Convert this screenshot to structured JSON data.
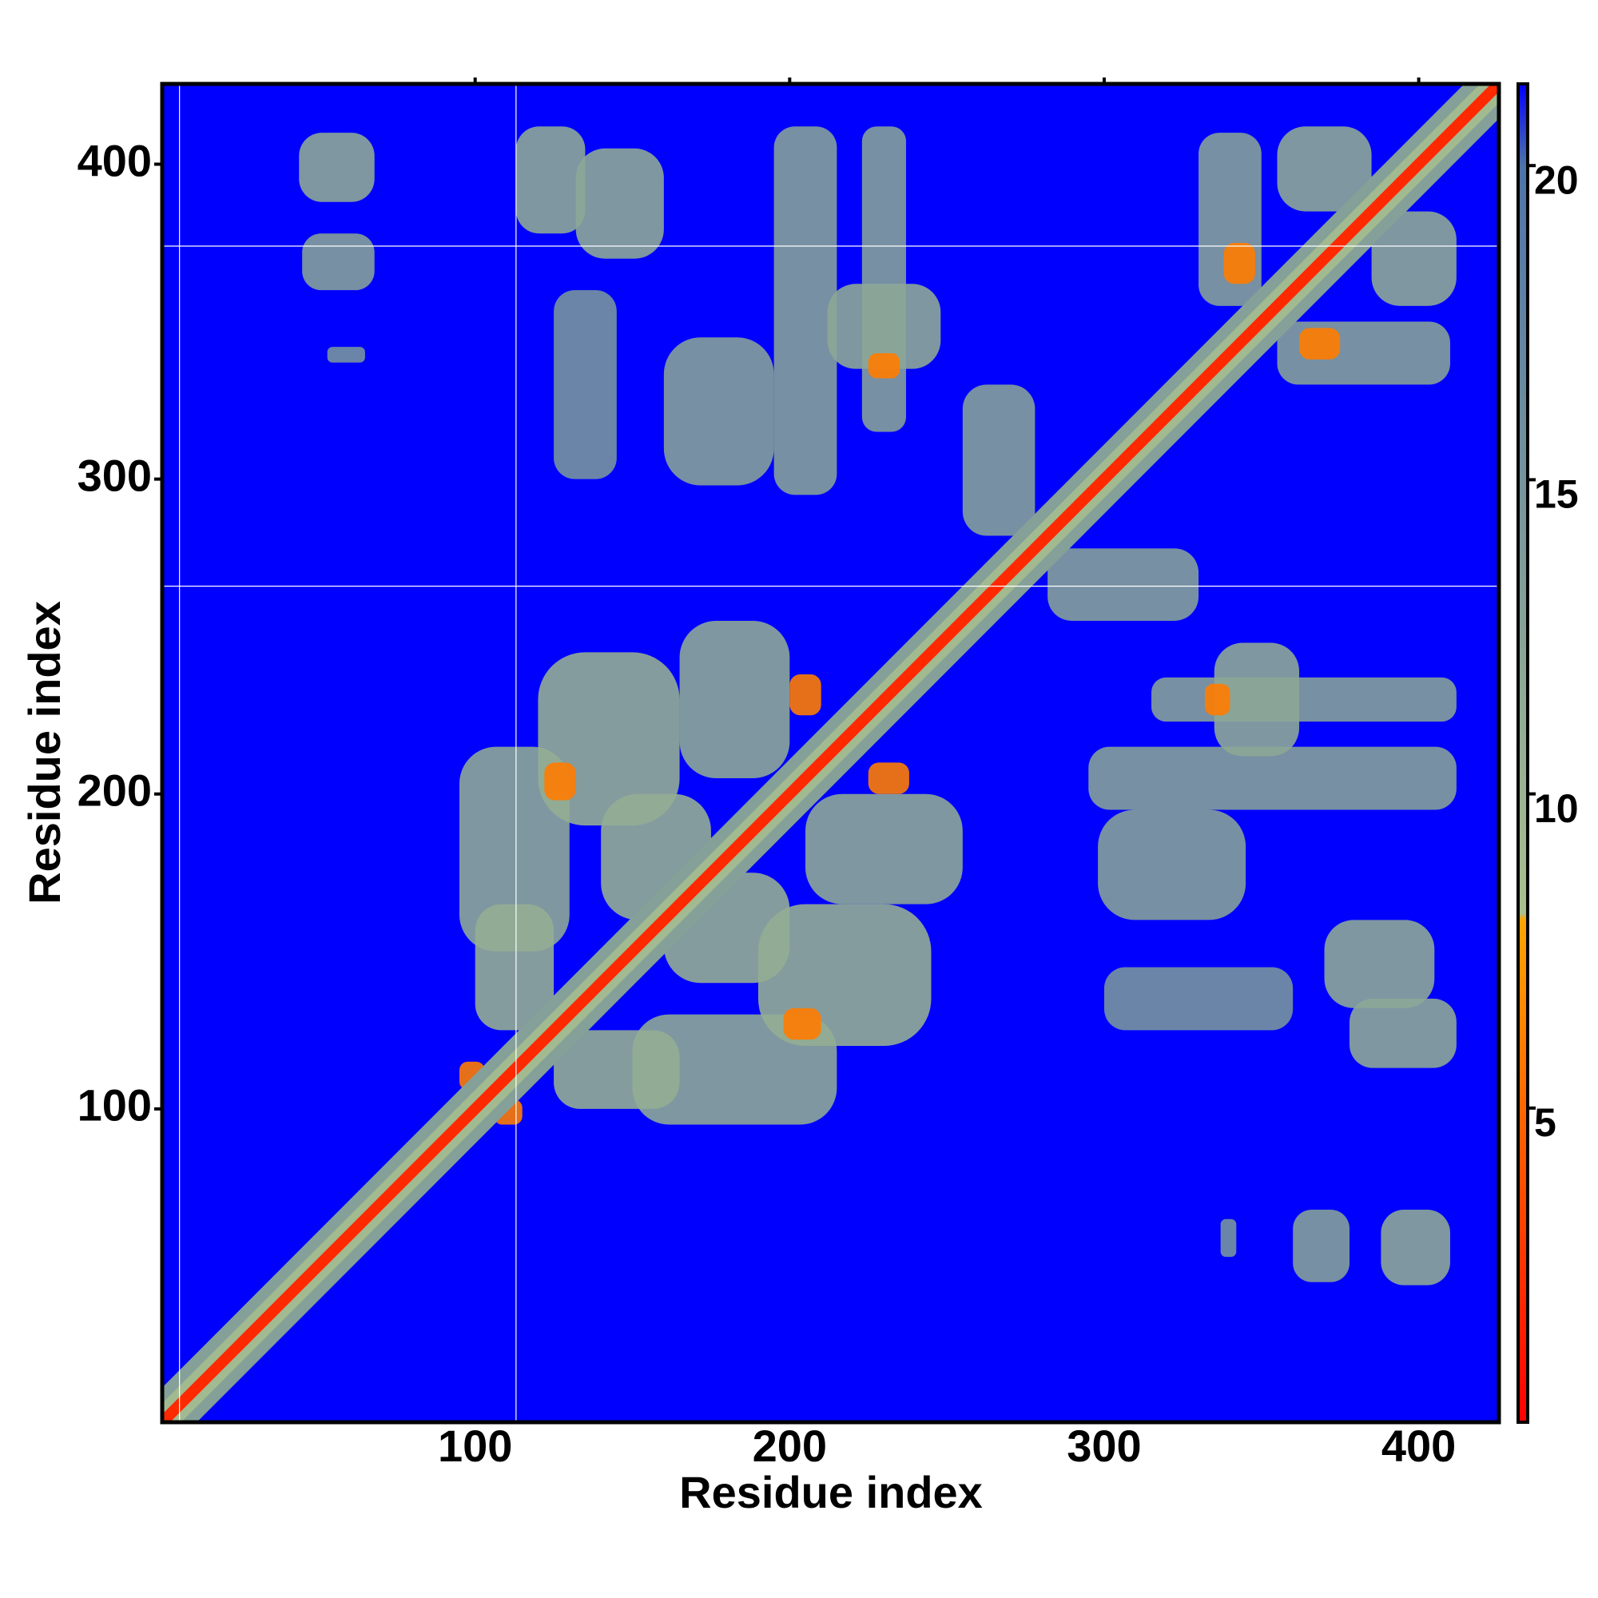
{
  "chart_data": {
    "type": "heatmap",
    "xlabel": "Residue index",
    "ylabel": "Residue index",
    "xlim": [
      0.5,
      425.5
    ],
    "ylim": [
      0.5,
      425.5
    ],
    "xticks": [
      100,
      200,
      300,
      400
    ],
    "yticks": [
      100,
      200,
      300,
      400
    ],
    "colorbar": {
      "lim": [
        0,
        21.3
      ],
      "ticks": [
        5,
        10,
        15,
        20
      ]
    },
    "colorscale": [
      {
        "value": 0,
        "color": "#ff0000"
      },
      {
        "value": 8,
        "color": "#ffa500"
      },
      {
        "value": 8.1,
        "color": "#a9c08e"
      },
      {
        "value": 20,
        "color": "#4f73a8"
      },
      {
        "value": 21.3,
        "color": "#0000ff"
      }
    ],
    "background_value": 21.3,
    "diagonal_band": [
      {
        "offset": 11,
        "value": 13
      },
      {
        "offset": 6,
        "value": 9
      },
      {
        "offset": 2.5,
        "value": 2
      }
    ],
    "missing_x": [
      6,
      113
    ],
    "missing_y": [
      266,
      374
    ],
    "contacts": [
      {
        "x": [
          44,
          68
        ],
        "y": [
          388,
          410
        ],
        "value": 12
      },
      {
        "x": [
          45,
          68
        ],
        "y": [
          360,
          378
        ],
        "value": 13
      },
      {
        "x": [
          53,
          65
        ],
        "y": [
          337,
          342
        ],
        "value": 15
      },
      {
        "x": [
          113,
          135
        ],
        "y": [
          378,
          412
        ],
        "value": 12
      },
      {
        "x": [
          132,
          160
        ],
        "y": [
          370,
          405
        ],
        "value": 12
      },
      {
        "x": [
          125,
          145
        ],
        "y": [
          300,
          360
        ],
        "value": 15
      },
      {
        "x": [
          160,
          195
        ],
        "y": [
          298,
          345
        ],
        "value": 13
      },
      {
        "x": [
          195,
          215
        ],
        "y": [
          295,
          412
        ],
        "value": 13
      },
      {
        "x": [
          223,
          237
        ],
        "y": [
          315,
          412
        ],
        "value": 13
      },
      {
        "x": [
          212,
          248
        ],
        "y": [
          335,
          362
        ],
        "value": 12
      },
      {
        "x": [
          255,
          278
        ],
        "y": [
          282,
          330
        ],
        "value": 13
      },
      {
        "x": [
          330,
          350
        ],
        "y": [
          355,
          410
        ],
        "value": 13
      },
      {
        "x": [
          355,
          385
        ],
        "y": [
          385,
          412
        ],
        "value": 12
      },
      {
        "x": [
          95,
          130
        ],
        "y": [
          150,
          215
        ],
        "value": 12
      },
      {
        "x": [
          120,
          165
        ],
        "y": [
          190,
          245
        ],
        "value": 11
      },
      {
        "x": [
          165,
          200
        ],
        "y": [
          205,
          255
        ],
        "value": 12
      },
      {
        "x": [
          100,
          125
        ],
        "y": [
          125,
          165
        ],
        "value": 11
      },
      {
        "x": [
          140,
          175
        ],
        "y": [
          160,
          200
        ],
        "value": 11
      },
      {
        "x": [
          122,
          132
        ],
        "y": [
          198,
          210
        ],
        "value": 6
      },
      {
        "x": [
          95,
          103
        ],
        "y": [
          106,
          115
        ],
        "value": 6
      },
      {
        "x": [
          200,
          210
        ],
        "y": [
          225,
          238
        ],
        "value": 6
      },
      {
        "x": [
          225,
          235
        ],
        "y": [
          332,
          340
        ],
        "value": 6
      },
      {
        "x": [
          338,
          348
        ],
        "y": [
          362,
          375
        ],
        "value": 6
      }
    ]
  }
}
